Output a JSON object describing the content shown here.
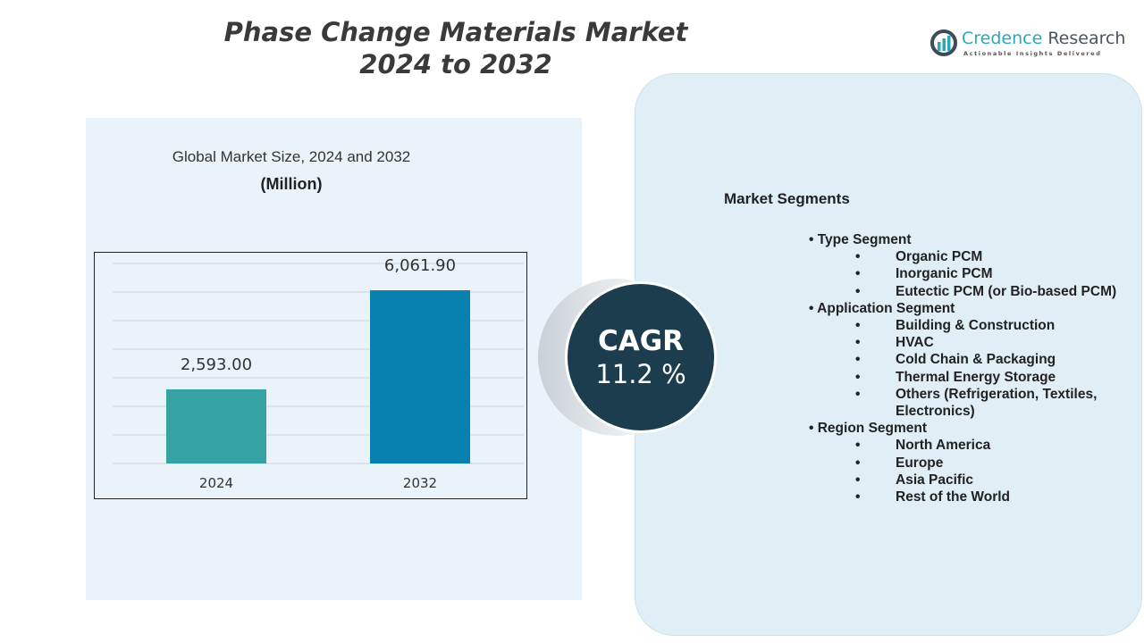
{
  "header": {
    "title_line1": "Phase Change Materials Market",
    "title_line2": "2024 to 2032"
  },
  "logo": {
    "name_part1": "Credence",
    "name_part2": " Research",
    "tagline": "Actionable Insights Delivered"
  },
  "chart_panel": {
    "subtitle": "Global Market Size, 2024 and 2032",
    "unit": "(Million)"
  },
  "chart_data": {
    "type": "bar",
    "categories": [
      "2024",
      "2032"
    ],
    "values": [
      2593.0,
      6061.9
    ],
    "value_labels": [
      "2,593.00",
      "6,061.90"
    ],
    "colors": [
      "#35a3a3",
      "#0880b0"
    ],
    "title": "Global Market Size, 2024 and 2032",
    "ylabel": "(Million)",
    "ylim": [
      0,
      7000
    ],
    "grid": true
  },
  "cagr": {
    "label": "CAGR",
    "value": "11.2 %",
    "color": "#1b3d4d"
  },
  "segments": {
    "title": "Market Segments",
    "groups": [
      {
        "name": "Type Segment",
        "items": [
          "Organic PCM",
          "Inorganic PCM",
          "Eutectic PCM (or Bio-based PCM)"
        ]
      },
      {
        "name": "Application Segment",
        "items": [
          "Building & Construction",
          "HVAC",
          "Cold Chain & Packaging",
          "Thermal Energy Storage",
          "Others (Refrigeration, Textiles, Electronics)"
        ]
      },
      {
        "name": "Region Segment",
        "items": [
          "North America",
          "Europe",
          "Asia Pacific",
          "Rest of the World"
        ]
      }
    ]
  }
}
